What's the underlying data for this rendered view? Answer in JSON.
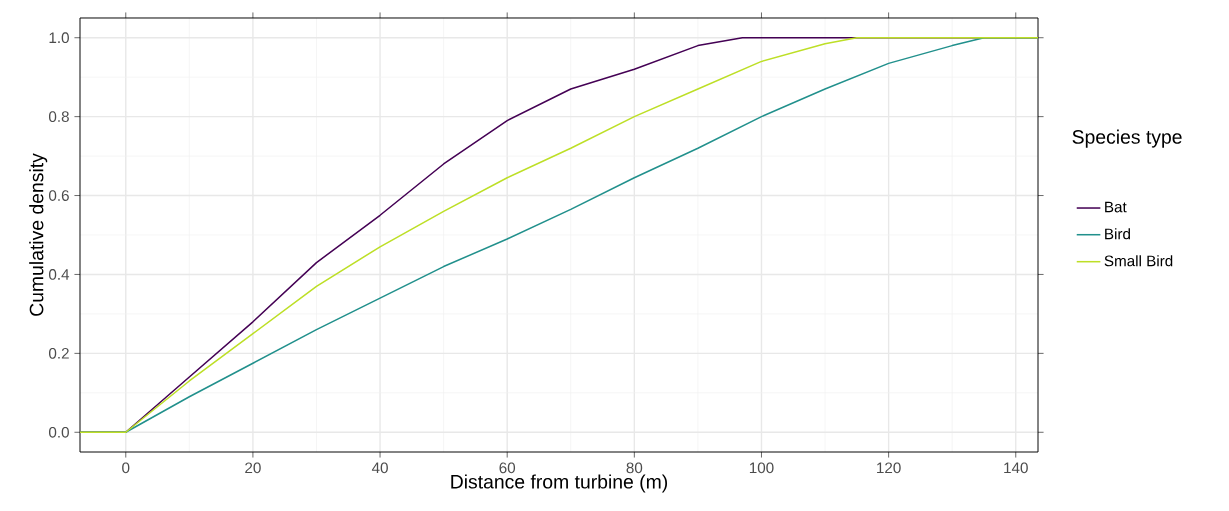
{
  "chart_data": {
    "type": "line",
    "xlabel": "Distance from turbine (m)",
    "ylabel": "Cumulative density",
    "legend_title": "Species type",
    "xlim": [
      -7.2,
      143.5
    ],
    "ylim": [
      -0.05,
      1.05
    ],
    "xticks": [
      0,
      20,
      40,
      60,
      80,
      100,
      120,
      140
    ],
    "yticks": [
      {
        "value": 0,
        "label": "0.0"
      },
      {
        "value": 0.2,
        "label": "0.2"
      },
      {
        "value": 0.4,
        "label": "0.4"
      },
      {
        "value": 0.6,
        "label": "0.6"
      },
      {
        "value": 0.8,
        "label": "0.8"
      },
      {
        "value": 1,
        "label": "1.0"
      }
    ],
    "grid": true,
    "legend": "right",
    "line_style": "solid",
    "marker": "none",
    "series": [
      {
        "name": "Bat",
        "color": "#440154",
        "x": [
          -7.2,
          0,
          10,
          20,
          30,
          40,
          50,
          60,
          70,
          80,
          90,
          97,
          143.5
        ],
        "values": [
          0,
          0,
          0.14,
          0.28,
          0.43,
          0.55,
          0.68,
          0.79,
          0.87,
          0.92,
          0.98,
          1.0,
          1.0
        ]
      },
      {
        "name": "Bird",
        "color": "#21908c",
        "x": [
          -7.2,
          0,
          10,
          20,
          30,
          40,
          50,
          60,
          70,
          80,
          90,
          100,
          110,
          120,
          130,
          135,
          143.5
        ],
        "values": [
          0,
          0,
          0.09,
          0.175,
          0.26,
          0.34,
          0.42,
          0.49,
          0.565,
          0.645,
          0.72,
          0.8,
          0.87,
          0.935,
          0.98,
          1.0,
          1.0
        ]
      },
      {
        "name": "Small Bird",
        "color": "#bddf26",
        "x": [
          -7.2,
          0,
          10,
          20,
          30,
          40,
          50,
          60,
          70,
          80,
          90,
          100,
          110,
          115,
          143.5
        ],
        "values": [
          0,
          0,
          0.13,
          0.25,
          0.37,
          0.47,
          0.56,
          0.645,
          0.72,
          0.8,
          0.87,
          0.94,
          0.985,
          1.0,
          1.0
        ]
      }
    ]
  }
}
